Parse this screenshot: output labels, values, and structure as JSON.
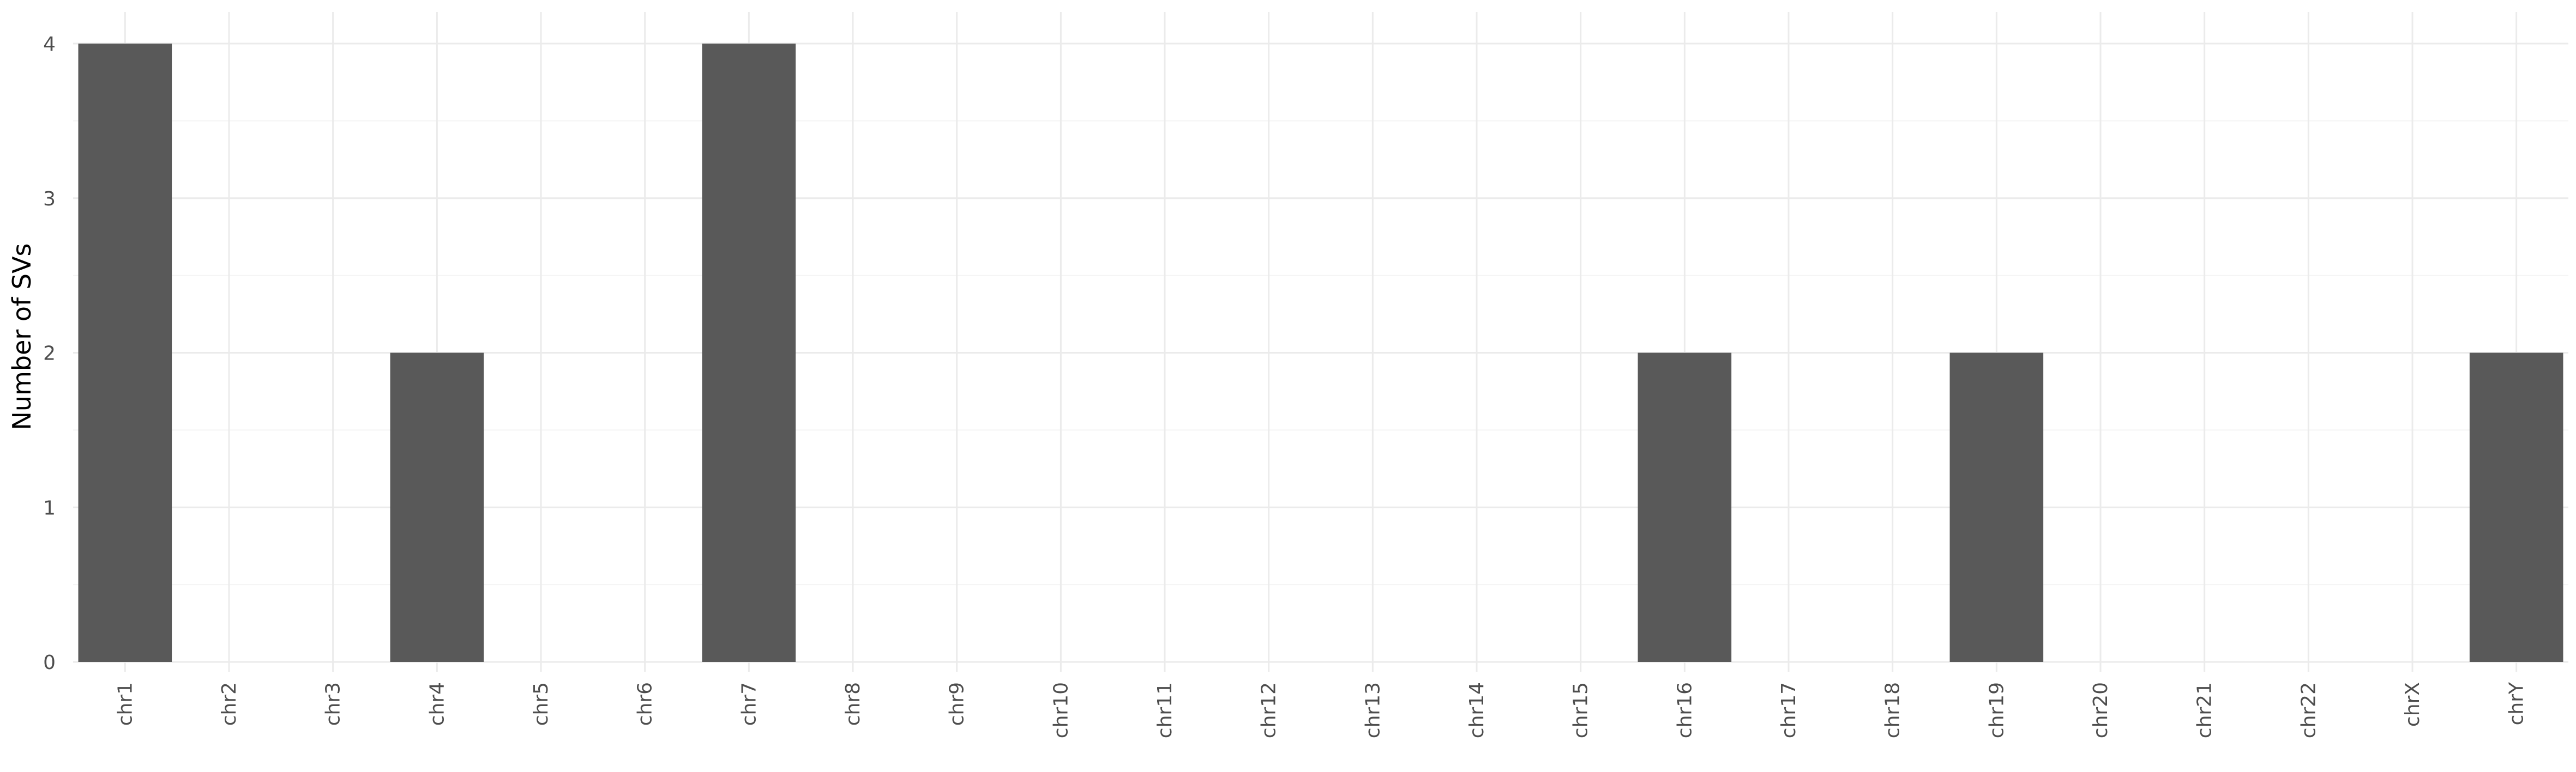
{
  "chart_data": {
    "type": "bar",
    "title": "",
    "xlabel": "",
    "ylabel": "Number of SVs",
    "categories": [
      "chr1",
      "chr2",
      "chr3",
      "chr4",
      "chr5",
      "chr6",
      "chr7",
      "chr8",
      "chr9",
      "chr10",
      "chr11",
      "chr12",
      "chr13",
      "chr14",
      "chr15",
      "chr16",
      "chr17",
      "chr18",
      "chr19",
      "chr20",
      "chr21",
      "chr22",
      "chrX",
      "chrY"
    ],
    "values": [
      4,
      0,
      0,
      2,
      0,
      0,
      4,
      0,
      0,
      0,
      0,
      0,
      0,
      0,
      0,
      2,
      0,
      0,
      2,
      0,
      0,
      0,
      0,
      2
    ],
    "ylim": [
      0,
      4
    ],
    "yticks": [
      0,
      1,
      2,
      3,
      4
    ],
    "grid": true,
    "legend": "none",
    "colors": {
      "bar": "#595959",
      "grid_major": "#ebebeb",
      "grid_minor": "#f4f4f4",
      "background": "#ffffff"
    }
  }
}
